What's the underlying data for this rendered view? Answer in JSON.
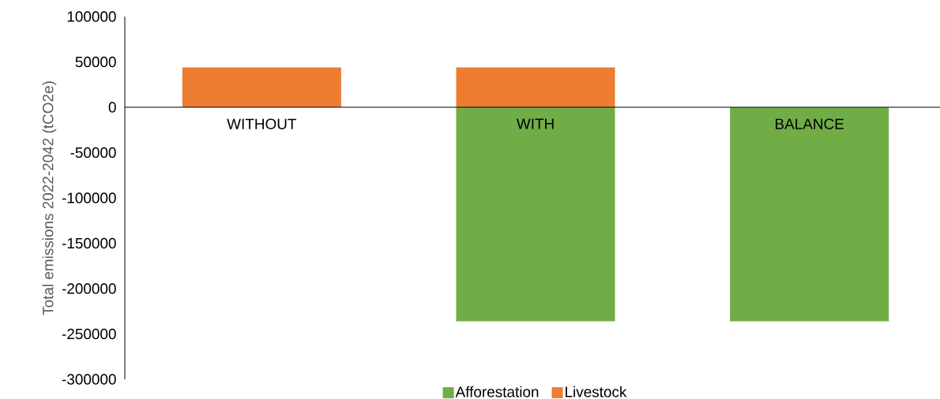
{
  "chart_data": {
    "type": "bar",
    "stacked": true,
    "ylabel": "Total emissions 2022-2042 (tCO2e)",
    "categories": [
      "WITHOUT",
      "WITH",
      "BALANCE"
    ],
    "series": [
      {
        "name": "Afforestation",
        "color": "#70ad47",
        "values": [
          null,
          -236000,
          -236000
        ]
      },
      {
        "name": "Livestock",
        "color": "#ed7d31",
        "values": [
          44000,
          44000,
          null
        ]
      }
    ],
    "ylim": [
      -300000,
      100000
    ],
    "yticks": [
      -300000,
      -250000,
      -200000,
      -150000,
      -100000,
      -50000,
      0,
      50000,
      100000
    ],
    "legend": "bottom"
  }
}
